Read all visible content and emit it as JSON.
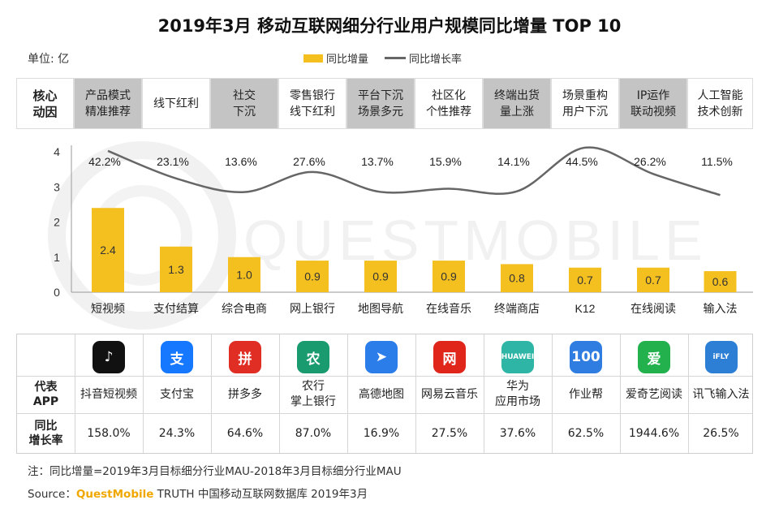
{
  "title": "2019年3月 移动互联网细分行业用户规模同比增量 TOP 10",
  "unit": "单位: 亿",
  "legend": {
    "bar": "同比增量",
    "line": "同比增长率"
  },
  "watermark": "QUESTMOBILE",
  "factors": {
    "header": "核心\n动因",
    "items": [
      "产品模式\n精准推荐",
      "线下红利",
      "社交\n下沉",
      "零售银行\n线下红利",
      "平台下沉\n场景多元",
      "社区化\n个性推荐",
      "终端出货\n量上涨",
      "场景重构\n用户下沉",
      "IP运作\n联动视频",
      "人工智能\n技术创新"
    ],
    "shaded": [
      true,
      false,
      true,
      false,
      true,
      false,
      true,
      false,
      true,
      false
    ]
  },
  "chart_data": {
    "type": "bar",
    "categories": [
      "短视频",
      "支付结算",
      "综合电商",
      "网上银行",
      "地图导航",
      "在线音乐",
      "终端商店",
      "K12",
      "在线阅读",
      "输入法"
    ],
    "series": [
      {
        "name": "同比增量",
        "values": [
          2.4,
          1.3,
          1.0,
          0.9,
          0.9,
          0.9,
          0.8,
          0.7,
          0.7,
          0.6
        ],
        "labels": [
          "2.4",
          "1.3",
          "1.0",
          "0.9",
          "0.9",
          "0.9",
          "0.8",
          "0.7",
          "0.7",
          "0.6"
        ]
      },
      {
        "name": "同比增长率",
        "values": [
          42.2,
          23.1,
          13.6,
          27.6,
          13.7,
          15.9,
          14.1,
          44.5,
          26.2,
          11.5
        ],
        "labels": [
          "42.2%",
          "23.1%",
          "13.6%",
          "27.6%",
          "13.7%",
          "15.9%",
          "14.1%",
          "44.5%",
          "26.2%",
          "11.5%"
        ]
      }
    ],
    "yticks": [
      "0",
      "1",
      "2",
      "3",
      "4"
    ],
    "ylim": [
      0,
      4
    ],
    "bar_color": "#f4c020",
    "line_color": "#666666"
  },
  "apps": {
    "row_app_label": "代表\nAPP",
    "row_growth_label": "同比\n增长率",
    "items": [
      {
        "name": "抖音短视频",
        "growth": "158.0%",
        "icon": "tiktok-icon",
        "color": "#111111"
      },
      {
        "name": "支付宝",
        "growth": "24.3%",
        "icon": "alipay-icon",
        "color": "#1677ff"
      },
      {
        "name": "拼多多",
        "growth": "64.6%",
        "icon": "pinduoduo-icon",
        "color": "#e02e24"
      },
      {
        "name": "农行\n掌上银行",
        "growth": "87.0%",
        "icon": "abc-bank-icon",
        "color": "#1a9b6f"
      },
      {
        "name": "高德地图",
        "growth": "16.9%",
        "icon": "amap-icon",
        "color": "#2b7de9"
      },
      {
        "name": "网易云音乐",
        "growth": "27.5%",
        "icon": "netease-music-icon",
        "color": "#e0251b"
      },
      {
        "name": "华为\n应用市场",
        "growth": "37.6%",
        "icon": "huawei-appgallery-icon",
        "color": "#2fb5a6"
      },
      {
        "name": "作业帮",
        "growth": "62.5%",
        "icon": "zuoyebang-icon",
        "color": "#2f7de1"
      },
      {
        "name": "爱奇艺阅读",
        "growth": "1944.6%",
        "icon": "iqiyi-read-icon",
        "color": "#23b14d"
      },
      {
        "name": "讯飞输入法",
        "growth": "26.5%",
        "icon": "ifly-icon",
        "color": "#2d7fd6"
      }
    ],
    "icon_glyphs": [
      "♪",
      "支",
      "拼",
      "农",
      "➤",
      "网",
      "HUAWEI",
      "100",
      "爱",
      "iFLY"
    ]
  },
  "note": "注：同比增量=2019年3月目标细分行业MAU-2018年3月目标细分行业MAU",
  "source": {
    "prefix": "Source：",
    "brand": "QuestMobile",
    "suffix": " TRUTH 中国移动互联网数据库 2019年3月"
  }
}
